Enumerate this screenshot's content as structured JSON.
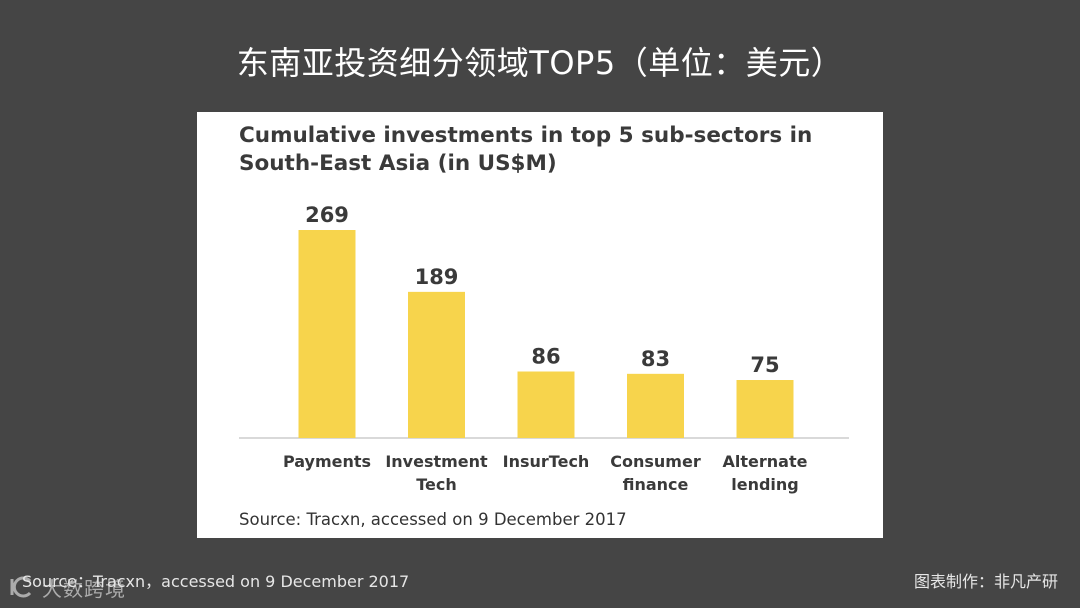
{
  "slide": {
    "title": "东南亚投资细分领域TOP5（单位：美元）",
    "footer_source": "Source：Tracxn，accessed on 9 December 2017",
    "footer_credit": "图表制作：非凡产研",
    "watermark_text": "大数跨境"
  },
  "colors": {
    "background": "#454545",
    "bar": "#f7d44c",
    "axis": "#d9d9d9"
  },
  "chart_data": {
    "type": "bar",
    "title": "Cumulative investments in top 5 sub-sectors in South-East Asia (in US$M)",
    "categories": [
      [
        "Payments"
      ],
      [
        "Investment",
        "Tech"
      ],
      [
        "InsurTech"
      ],
      [
        "Consumer",
        "finance"
      ],
      [
        "Alternate",
        "lending"
      ]
    ],
    "values": [
      269,
      189,
      86,
      83,
      75
    ],
    "data_labels": [
      "269",
      "189",
      "86",
      "83",
      "75"
    ],
    "ylim": [
      0,
      269
    ],
    "grid": false,
    "legend": "none",
    "source": "Source: Tracxn, accessed on 9 December 2017"
  }
}
